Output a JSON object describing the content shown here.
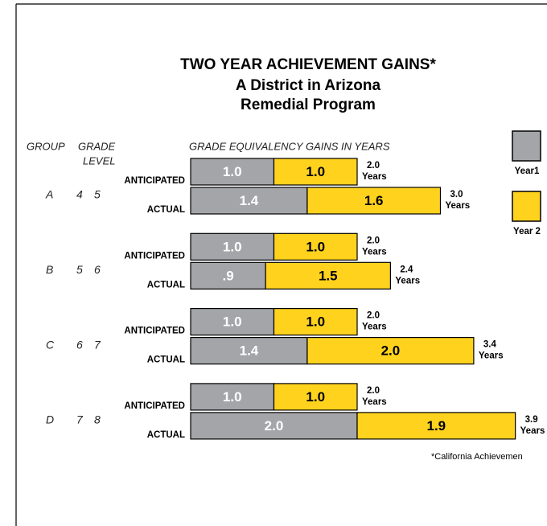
{
  "chart_data": {
    "type": "bar",
    "orientation": "horizontal",
    "stacked": true,
    "title": "TWO YEAR ACHIEVEMENT GAINS*",
    "subtitle": [
      "A District in Arizona",
      "Remedial Program"
    ],
    "column_headers": {
      "group": "GROUP",
      "grade": "GRADE",
      "level": "LEVEL",
      "gains": "GRADE EQUIVALENCY GAINS IN YEARS"
    },
    "groups": [
      "A",
      "B",
      "C",
      "D"
    ],
    "grade_levels": [
      [
        4,
        5
      ],
      [
        5,
        6
      ],
      [
        6,
        7
      ],
      [
        7,
        8
      ]
    ],
    "bar_labels": [
      "ANTICIPATED",
      "ACTUAL"
    ],
    "series": [
      {
        "name": "Year1",
        "color": "#a4a5a9",
        "values": [
          1.0,
          1.4,
          1.0,
          0.9,
          1.0,
          1.4,
          1.0,
          2.0
        ],
        "value_labels": [
          "1.0",
          "1.4",
          "1.0",
          ".9",
          "1.0",
          "1.4",
          "1.0",
          "2.0"
        ]
      },
      {
        "name": "Year 2",
        "color": "#ffd21e",
        "values": [
          1.0,
          1.6,
          1.0,
          1.5,
          1.0,
          2.0,
          1.0,
          1.9
        ],
        "value_labels": [
          "1.0",
          "1.6",
          "1.0",
          "1.5",
          "1.0",
          "2.0",
          "1.0",
          "1.9"
        ]
      }
    ],
    "total_labels": [
      "2.0",
      "3.0",
      "2.0",
      "2.4",
      "2.0",
      "3.4",
      "2.0",
      "3.9"
    ],
    "total_unit": "Years",
    "xlim": [
      0,
      4
    ],
    "footnote": "*California Achievemen"
  }
}
